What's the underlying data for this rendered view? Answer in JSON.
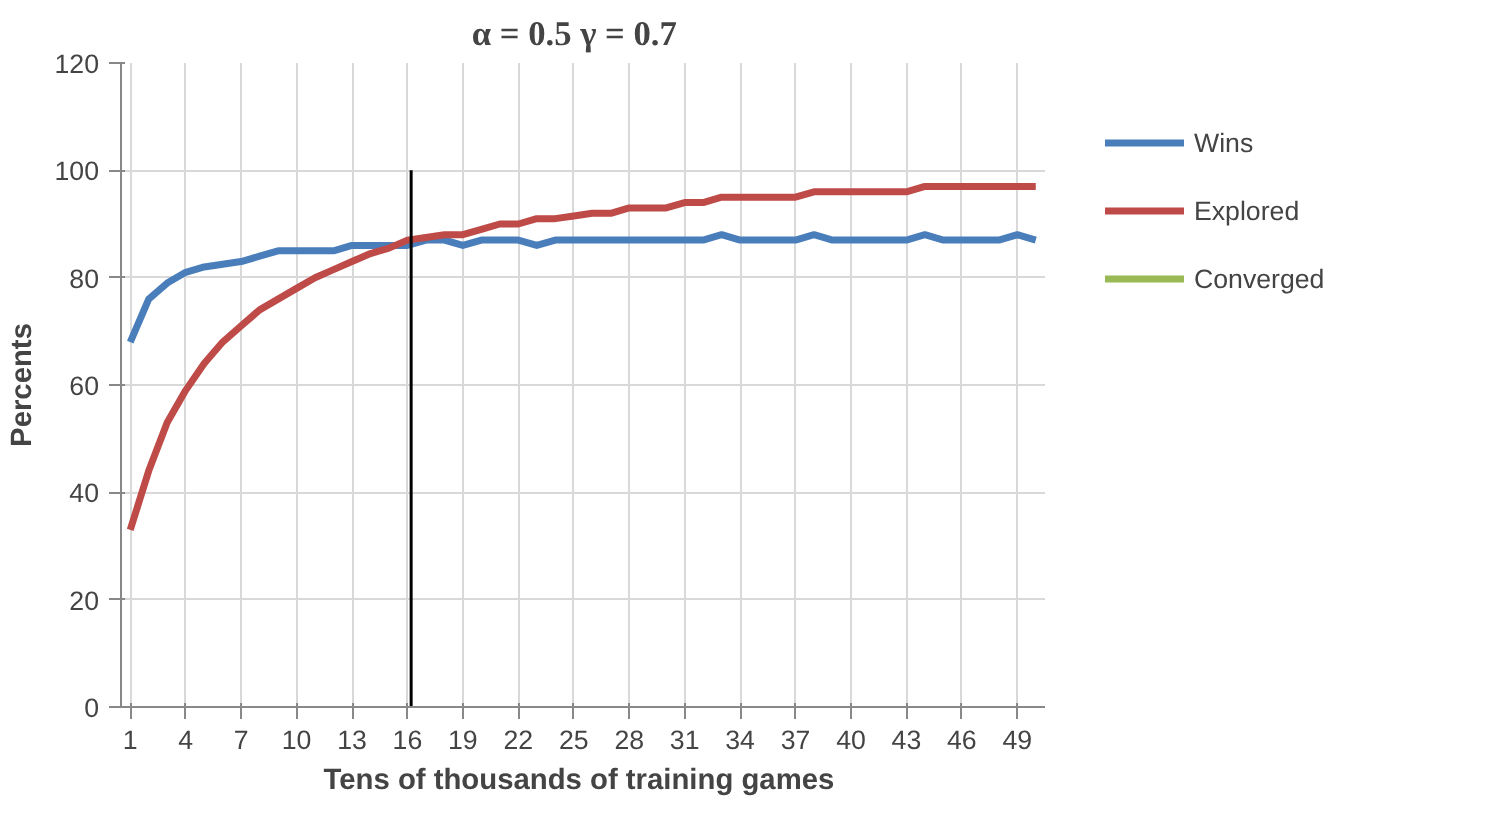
{
  "chart_data": {
    "type": "line",
    "title": "α = 0.5   γ = 0.7",
    "xlabel": "Tens of thousands  of training games",
    "ylabel": "Percents",
    "x": [
      1,
      2,
      3,
      4,
      5,
      6,
      7,
      8,
      9,
      10,
      11,
      12,
      13,
      14,
      15,
      16,
      17,
      18,
      19,
      20,
      21,
      22,
      23,
      24,
      25,
      26,
      27,
      28,
      29,
      30,
      31,
      32,
      33,
      34,
      35,
      36,
      37,
      38,
      39,
      40,
      41,
      42,
      43,
      44,
      45,
      46,
      47,
      48,
      49,
      50
    ],
    "xlim": [
      0.5,
      50.5
    ],
    "xticks": [
      1,
      4,
      7,
      10,
      13,
      16,
      19,
      22,
      25,
      28,
      31,
      34,
      37,
      40,
      43,
      46,
      49
    ],
    "ylim": [
      0,
      120
    ],
    "yticks": [
      0,
      20,
      40,
      60,
      80,
      100,
      120
    ],
    "grid": true,
    "legend": "right",
    "line_style": "solid",
    "marker": "none",
    "series": [
      {
        "name": "Wins",
        "color": "#4a7ebb",
        "values": [
          68,
          76,
          79,
          81,
          82,
          82.5,
          83,
          84,
          85,
          85,
          85,
          85,
          86,
          86,
          86,
          86,
          87,
          87,
          86,
          87,
          87,
          87,
          86,
          87,
          87,
          87,
          87,
          87,
          87,
          87,
          87,
          87,
          88,
          87,
          87,
          87,
          87,
          88,
          87,
          87,
          87,
          87,
          87,
          88,
          87,
          87,
          87,
          87,
          88,
          87
        ]
      },
      {
        "name": "Explored",
        "color": "#be4b48",
        "values": [
          33,
          44,
          53,
          59,
          64,
          68,
          71,
          74,
          76,
          78,
          80,
          81.5,
          83,
          84.5,
          85.5,
          87,
          87.5,
          88,
          88,
          89,
          90,
          90,
          91,
          91,
          91.5,
          92,
          92,
          93,
          93,
          93,
          94,
          94,
          95,
          95,
          95,
          95,
          95,
          96,
          96,
          96,
          96,
          96,
          96,
          97,
          97,
          97,
          97,
          97,
          97,
          97
        ]
      },
      {
        "name": "Converged",
        "color": "#98b954",
        "values": [
          null,
          null,
          null,
          null,
          null,
          null,
          null,
          null,
          null,
          null,
          null,
          null,
          null,
          null,
          null,
          null,
          null,
          null,
          null,
          null,
          null,
          null,
          null,
          null,
          null,
          null,
          null,
          null,
          null,
          null,
          null,
          null,
          null,
          null,
          null,
          null,
          null,
          null,
          null,
          null,
          null,
          null,
          null,
          null,
          null,
          null,
          null,
          null,
          null,
          null
        ]
      },
      {
        "color": "#000000",
        "x": [
          16.2,
          16.2
        ],
        "values": [
          0,
          100
        ]
      }
    ]
  }
}
